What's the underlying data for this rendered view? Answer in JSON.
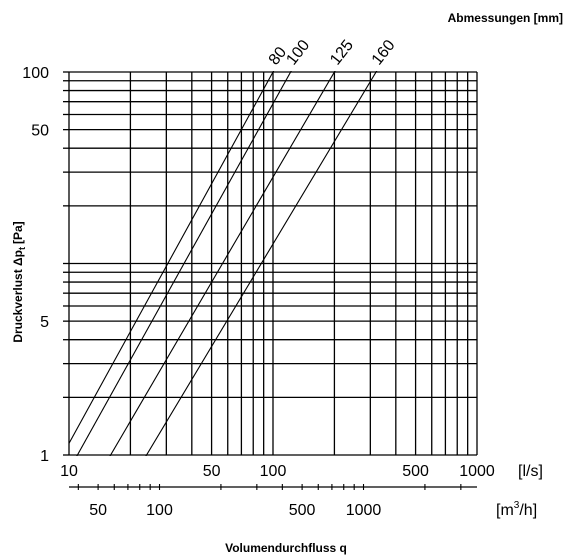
{
  "chart_data": {
    "type": "line",
    "title": "",
    "legend_title": "Abmessungen [mm]",
    "ylabel_main": "Druckverlust Δp",
    "ylabel_sub": "t",
    "ylabel_unit": "[Pa]",
    "xlabel": "Volumendurchfluss q",
    "x_unit_ls": "[l/s]",
    "x_unit_m3h": "[m",
    "x_unit_m3h_sup": "3",
    "x_unit_m3h_end": "/h]",
    "x_scale": "log",
    "y_scale": "log",
    "xlim": [
      10,
      1000
    ],
    "ylim": [
      1,
      100
    ],
    "grid": true,
    "y_tick_labels": [
      {
        "value": 1,
        "label": "1"
      },
      {
        "value": 5,
        "label": "5"
      },
      {
        "value": 50,
        "label": "50"
      },
      {
        "value": 100,
        "label": "100"
      }
    ],
    "x_tick_labels": [
      {
        "value": 10,
        "label": "10"
      },
      {
        "value": 50,
        "label": "50"
      },
      {
        "value": 100,
        "label": "100"
      },
      {
        "value": 500,
        "label": "500"
      },
      {
        "value": 1000,
        "label": "1000"
      }
    ],
    "x2_tick_labels": [
      {
        "value": 50,
        "label": "50"
      },
      {
        "value": 100,
        "label": "100"
      },
      {
        "value": 500,
        "label": "500"
      },
      {
        "value": 1000,
        "label": "1000"
      }
    ],
    "series": [
      {
        "name": "80",
        "points": [
          [
            10,
            1.15
          ],
          [
            100,
            100
          ]
        ]
      },
      {
        "name": "100",
        "points": [
          [
            11,
            1.0
          ],
          [
            122,
            100
          ]
        ]
      },
      {
        "name": "125",
        "points": [
          [
            16,
            1.0
          ],
          [
            200,
            100
          ]
        ]
      },
      {
        "name": "160",
        "points": [
          [
            24,
            1.0
          ],
          [
            320,
            100
          ]
        ]
      }
    ]
  }
}
